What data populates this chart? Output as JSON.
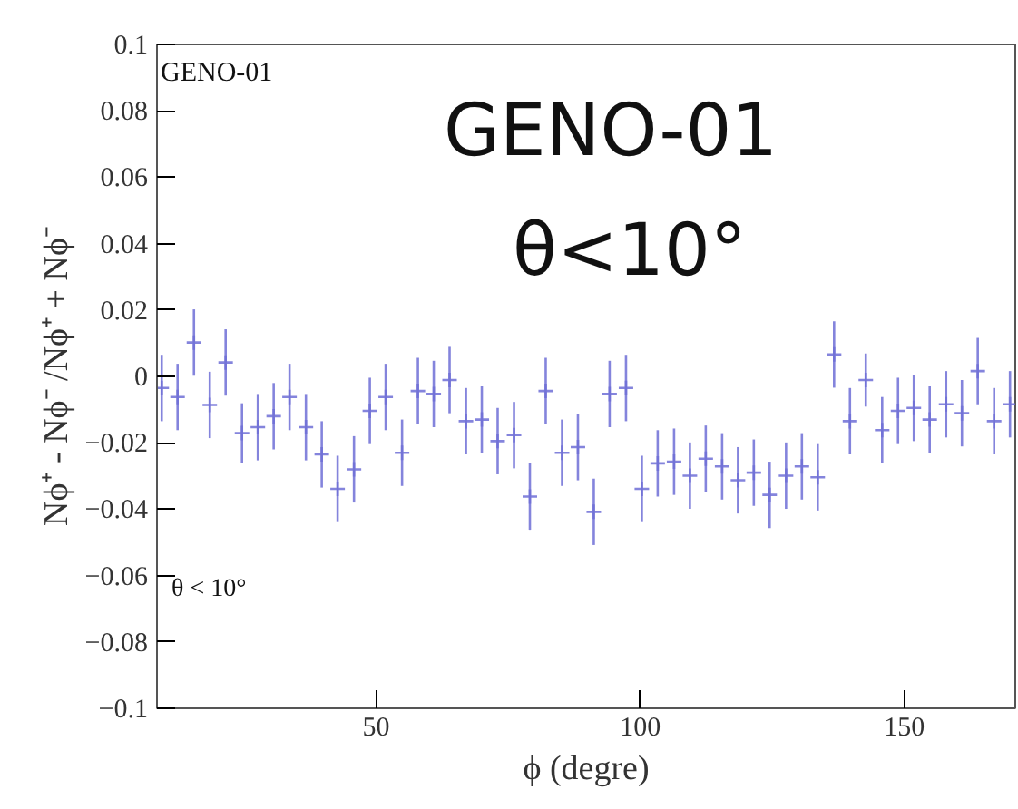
{
  "chart_data": {
    "type": "scatter",
    "xlabel": "ϕ (degre)",
    "ylabel": "Nϕ⁺ - Nϕ⁻ /Nϕ⁺ + Nϕ⁻",
    "annotations": [
      "GENO-01",
      "GENO-01",
      "θ<10°",
      "θ < 10°"
    ],
    "x": [
      9.4,
      12.4,
      15.5,
      18.5,
      21.5,
      24.6,
      27.6,
      30.6,
      33.6,
      36.7,
      39.7,
      42.7,
      45.8,
      48.8,
      51.8,
      54.9,
      57.9,
      60.9,
      63.9,
      67.0,
      70.0,
      73.0,
      76.1,
      79.1,
      82.1,
      85.2,
      88.2,
      91.2,
      94.2,
      97.3,
      100.3,
      103.3,
      106.4,
      109.4,
      112.4,
      115.5,
      118.5,
      121.5,
      124.5,
      127.6,
      130.6,
      133.6,
      136.7,
      139.7,
      142.7,
      145.8,
      148.8,
      151.8,
      154.8,
      157.9,
      160.9,
      163.9,
      167.0,
      170.0
    ],
    "series": [
      {
        "color": "#6e6ed6",
        "values": [
          -0.0035,
          -0.0062,
          0.0102,
          -0.0086,
          0.0042,
          -0.0171,
          -0.0153,
          -0.012,
          -0.0062,
          -0.0153,
          -0.0235,
          -0.0339,
          -0.028,
          -0.0104,
          -0.0062,
          -0.023,
          -0.0044,
          -0.0053,
          -0.0011,
          -0.0135,
          -0.013,
          -0.0195,
          -0.0177,
          -0.0362,
          -0.0044,
          -0.023,
          -0.0213,
          -0.0408,
          -0.0053,
          -0.0035,
          -0.0339,
          -0.0262,
          -0.0257,
          -0.0299,
          -0.0248,
          -0.0271,
          -0.0313,
          -0.029,
          -0.0357,
          -0.0299,
          -0.0271,
          -0.0304,
          0.0066,
          -0.0135,
          -0.0011,
          -0.0162,
          -0.0104,
          -0.0095,
          -0.013,
          -0.0084,
          -0.0111,
          0.0016,
          -0.0135,
          -0.0084
        ],
        "errors": [
          0.01,
          0.01,
          0.01,
          0.01,
          0.01,
          0.009,
          0.01,
          0.01,
          0.01,
          0.01,
          0.01,
          0.01,
          0.01,
          0.01,
          0.01,
          0.01,
          0.01,
          0.01,
          0.01,
          0.01,
          0.01,
          0.01,
          0.01,
          0.01,
          0.01,
          0.01,
          0.01,
          0.01,
          0.01,
          0.01,
          0.01,
          0.01,
          0.01,
          0.01,
          0.01,
          0.01,
          0.01,
          0.01,
          0.01,
          0.01,
          0.01,
          0.01,
          0.01,
          0.01,
          0.008,
          0.01,
          0.01,
          0.01,
          0.01,
          0.01,
          0.01,
          0.01,
          0.01,
          0.01
        ]
      }
    ],
    "marker": "cross",
    "xlim": [
      8.5,
      171
    ],
    "ylim": [
      -0.1,
      0.1
    ],
    "xticks": [
      50,
      100,
      150
    ],
    "yticks": [
      0.1,
      0.08,
      0.06,
      0.04,
      0.02,
      0,
      {
        "value": -0.02,
        "label": "−0.02"
      },
      {
        "value": -0.04,
        "label": "−0.04"
      },
      {
        "value": -0.06,
        "label": "−0.06"
      },
      {
        "value": -0.08,
        "label": "−0.08"
      },
      {
        "value": -0.1,
        "label": "−0.1"
      }
    ]
  }
}
